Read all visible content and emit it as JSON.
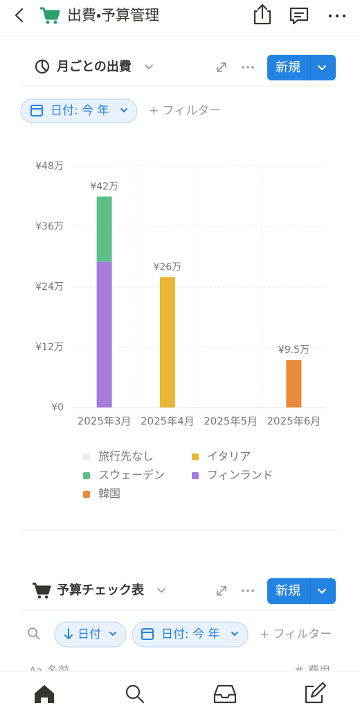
{
  "header": {
    "title": "出費・予算管理"
  },
  "section1": {
    "title": "月ごとの出費",
    "new_button": "新規",
    "filter_chip": "日付: 今 年",
    "add_filter": "+ フィルター"
  },
  "chart_data": {
    "type": "bar",
    "stacked": true,
    "grid": true,
    "legend": "bottom",
    "categories": [
      "2025年3月",
      "2025年4月",
      "2025年5月",
      "2025年6月"
    ],
    "series": [
      {
        "name": "旅行先なし",
        "color": "#ebebea",
        "values": [
          null,
          null,
          null,
          null
        ]
      },
      {
        "name": "イタリア",
        "color": "#e8b534",
        "values": [
          null,
          26,
          null,
          null
        ]
      },
      {
        "name": "スウェーデン",
        "color": "#5fbf8a",
        "values": [
          13,
          null,
          null,
          null
        ]
      },
      {
        "name": "フィンランド",
        "color": "#a57bdb",
        "values": [
          29,
          null,
          null,
          null
        ]
      },
      {
        "name": "韓国",
        "color": "#e8893c",
        "values": [
          null,
          null,
          null,
          9.5
        ]
      }
    ],
    "totals": [
      42,
      26,
      null,
      9.5
    ],
    "total_labels": [
      "¥42万",
      "¥26万",
      null,
      "¥9.5万"
    ],
    "ylim": [
      0,
      48
    ],
    "yticks": [
      {
        "value": 0,
        "label": "¥0"
      },
      {
        "value": 12,
        "label": "¥12万"
      },
      {
        "value": 24,
        "label": "¥24万"
      },
      {
        "value": 36,
        "label": "¥36万"
      },
      {
        "value": 48,
        "label": "¥48万"
      }
    ]
  },
  "section2": {
    "title": "予算チェック表",
    "new_button": "新規",
    "sort_chip": "日付",
    "filter_chip": "日付: 今 年",
    "add_filter": "+ フィルター",
    "columns": [
      "名前",
      "費用"
    ]
  }
}
